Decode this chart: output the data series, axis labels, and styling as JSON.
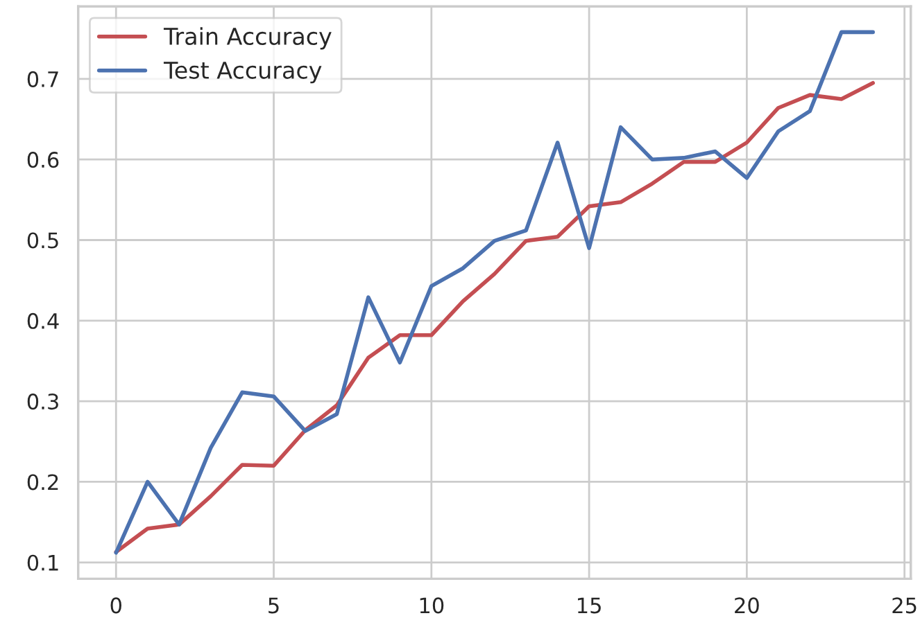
{
  "chart_data": {
    "type": "line",
    "x": [
      0,
      1,
      2,
      3,
      4,
      5,
      6,
      7,
      8,
      9,
      10,
      11,
      12,
      13,
      14,
      15,
      16,
      17,
      18,
      19,
      20,
      21,
      22,
      23,
      24
    ],
    "series": [
      {
        "name": "Train Accuracy",
        "color": "#c44e52",
        "values": [
          0.113,
          0.142,
          0.147,
          0.182,
          0.221,
          0.22,
          0.264,
          0.295,
          0.354,
          0.382,
          0.382,
          0.424,
          0.458,
          0.499,
          0.504,
          0.542,
          0.547,
          0.57,
          0.597,
          0.597,
          0.621,
          0.664,
          0.68,
          0.675,
          0.695
        ]
      },
      {
        "name": "Test Accuracy",
        "color": "#4c72b0",
        "values": [
          0.112,
          0.2,
          0.147,
          0.242,
          0.311,
          0.306,
          0.263,
          0.284,
          0.429,
          0.348,
          0.443,
          0.465,
          0.499,
          0.512,
          0.621,
          0.49,
          0.64,
          0.6,
          0.602,
          0.61,
          0.577,
          0.635,
          0.66,
          0.758,
          0.758
        ]
      }
    ],
    "xlim": [
      -1.2,
      25.2
    ],
    "xticks": [
      0,
      5,
      10,
      15,
      20,
      25
    ],
    "ylim": [
      0.0797,
      0.79
    ],
    "yticks": [
      0.1,
      0.2,
      0.3,
      0.4,
      0.5,
      0.6,
      0.7
    ],
    "grid": true,
    "legend": "top left"
  }
}
